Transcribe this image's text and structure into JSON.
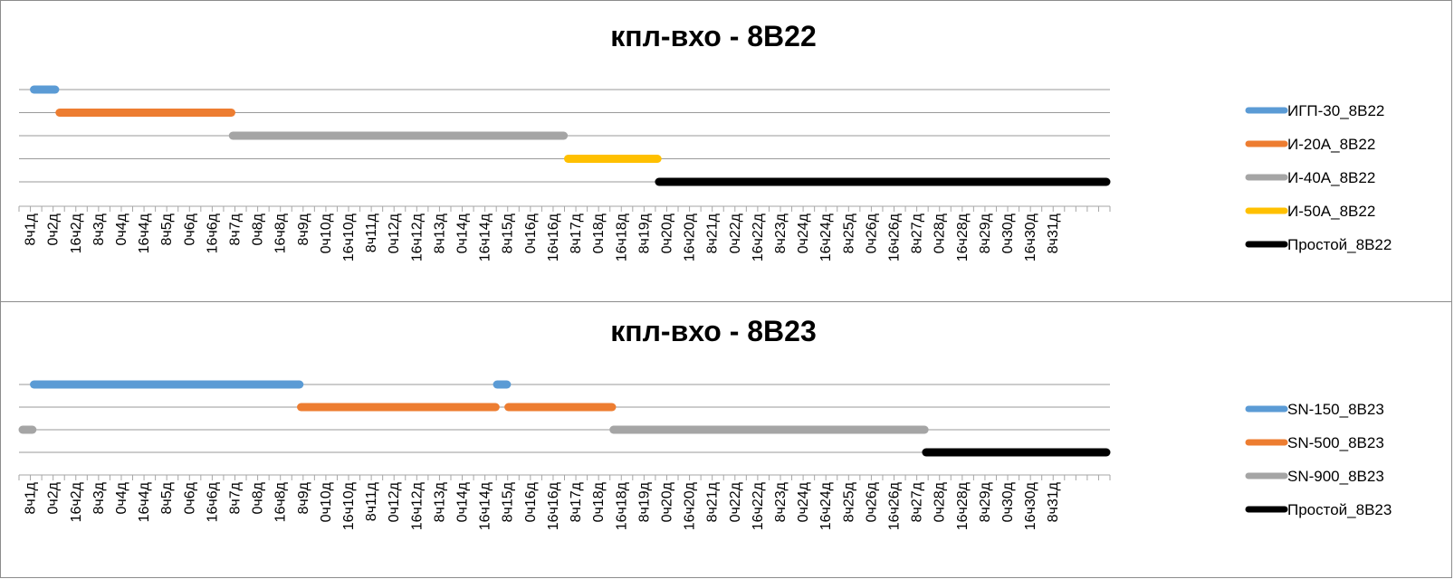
{
  "chart_data": [
    {
      "type": "gantt",
      "title": "кпл-вхо - 8В22",
      "tick_labels": [
        "8ч1д",
        "0ч2д",
        "16ч2д",
        "8ч3д",
        "0ч4д",
        "16ч4д",
        "8ч5д",
        "0ч6д",
        "16ч6д",
        "8ч7д",
        "0ч8д",
        "16ч8д",
        "8ч9д",
        "0ч10д",
        "16ч10д",
        "8ч11д",
        "0ч12д",
        "16ч12д",
        "8ч13д",
        "0ч14д",
        "16ч14д",
        "8ч15д",
        "0ч16д",
        "16ч16д",
        "8ч17д",
        "0ч18д",
        "16ч18д",
        "8ч19д",
        "0ч20д",
        "16ч20д",
        "8ч21д",
        "0ч22д",
        "16ч22д",
        "8ч23д",
        "0ч24д",
        "16ч24д",
        "8ч25д",
        "0ч26д",
        "16ч26д",
        "8ч27д",
        "0ч28д",
        "16ч28д",
        "8ч29д",
        "0ч30д",
        "16ч30д",
        "8ч31д"
      ],
      "xlim_hours": [
        0,
        768
      ],
      "series": [
        {
          "name": "ИГП-30_8В22",
          "color": "#5B9BD5",
          "segments": [
            [
              8,
              28
            ]
          ]
        },
        {
          "name": "И-20А_8В22",
          "color": "#ED7D31",
          "segments": [
            [
              26,
              152
            ]
          ]
        },
        {
          "name": "И-40А_8В22",
          "color": "#A5A5A5",
          "segments": [
            [
              148,
              386
            ]
          ]
        },
        {
          "name": "И-50А_8В22",
          "color": "#FFC000",
          "segments": [
            [
              384,
              452
            ]
          ]
        },
        {
          "name": "Простой_8В22",
          "color": "#000000",
          "segments": [
            [
              448,
              768
            ]
          ]
        }
      ]
    },
    {
      "type": "gantt",
      "title": "кпл-вхо - 8В23",
      "tick_labels": [
        "8ч1д",
        "0ч2д",
        "16ч2д",
        "8ч3д",
        "0ч4д",
        "16ч4д",
        "8ч5д",
        "0ч6д",
        "16ч6д",
        "8ч7д",
        "0ч8д",
        "16ч8д",
        "8ч9д",
        "0ч10д",
        "16ч10д",
        "8ч11д",
        "0ч12д",
        "16ч12д",
        "8ч13д",
        "0ч14д",
        "16ч14д",
        "8ч15д",
        "0ч16д",
        "16ч16д",
        "8ч17д",
        "0ч18д",
        "16ч18д",
        "8ч19д",
        "0ч20д",
        "16ч20д",
        "8ч21д",
        "0ч22д",
        "16ч22д",
        "8ч23д",
        "0ч24д",
        "16ч24д",
        "8ч25д",
        "0ч26д",
        "16ч26д",
        "8ч27д",
        "0ч28д",
        "16ч28д",
        "8ч29д",
        "0ч30д",
        "16ч30д",
        "8ч31д"
      ],
      "xlim_hours": [
        0,
        768
      ],
      "series": [
        {
          "name": "SN-150_8В23",
          "color": "#5B9BD5",
          "segments": [
            [
              8,
              200
            ],
            [
              334,
              346
            ]
          ]
        },
        {
          "name": "SN-500_8В23",
          "color": "#ED7D31",
          "segments": [
            [
              196,
              338
            ],
            [
              342,
              420
            ]
          ]
        },
        {
          "name": "SN-900_8В23",
          "color": "#A5A5A5",
          "segments": [
            [
              0,
              12
            ],
            [
              416,
              640
            ]
          ]
        },
        {
          "name": "Простой_8В23",
          "color": "#000000",
          "segments": [
            [
              636,
              768
            ]
          ]
        }
      ]
    }
  ]
}
